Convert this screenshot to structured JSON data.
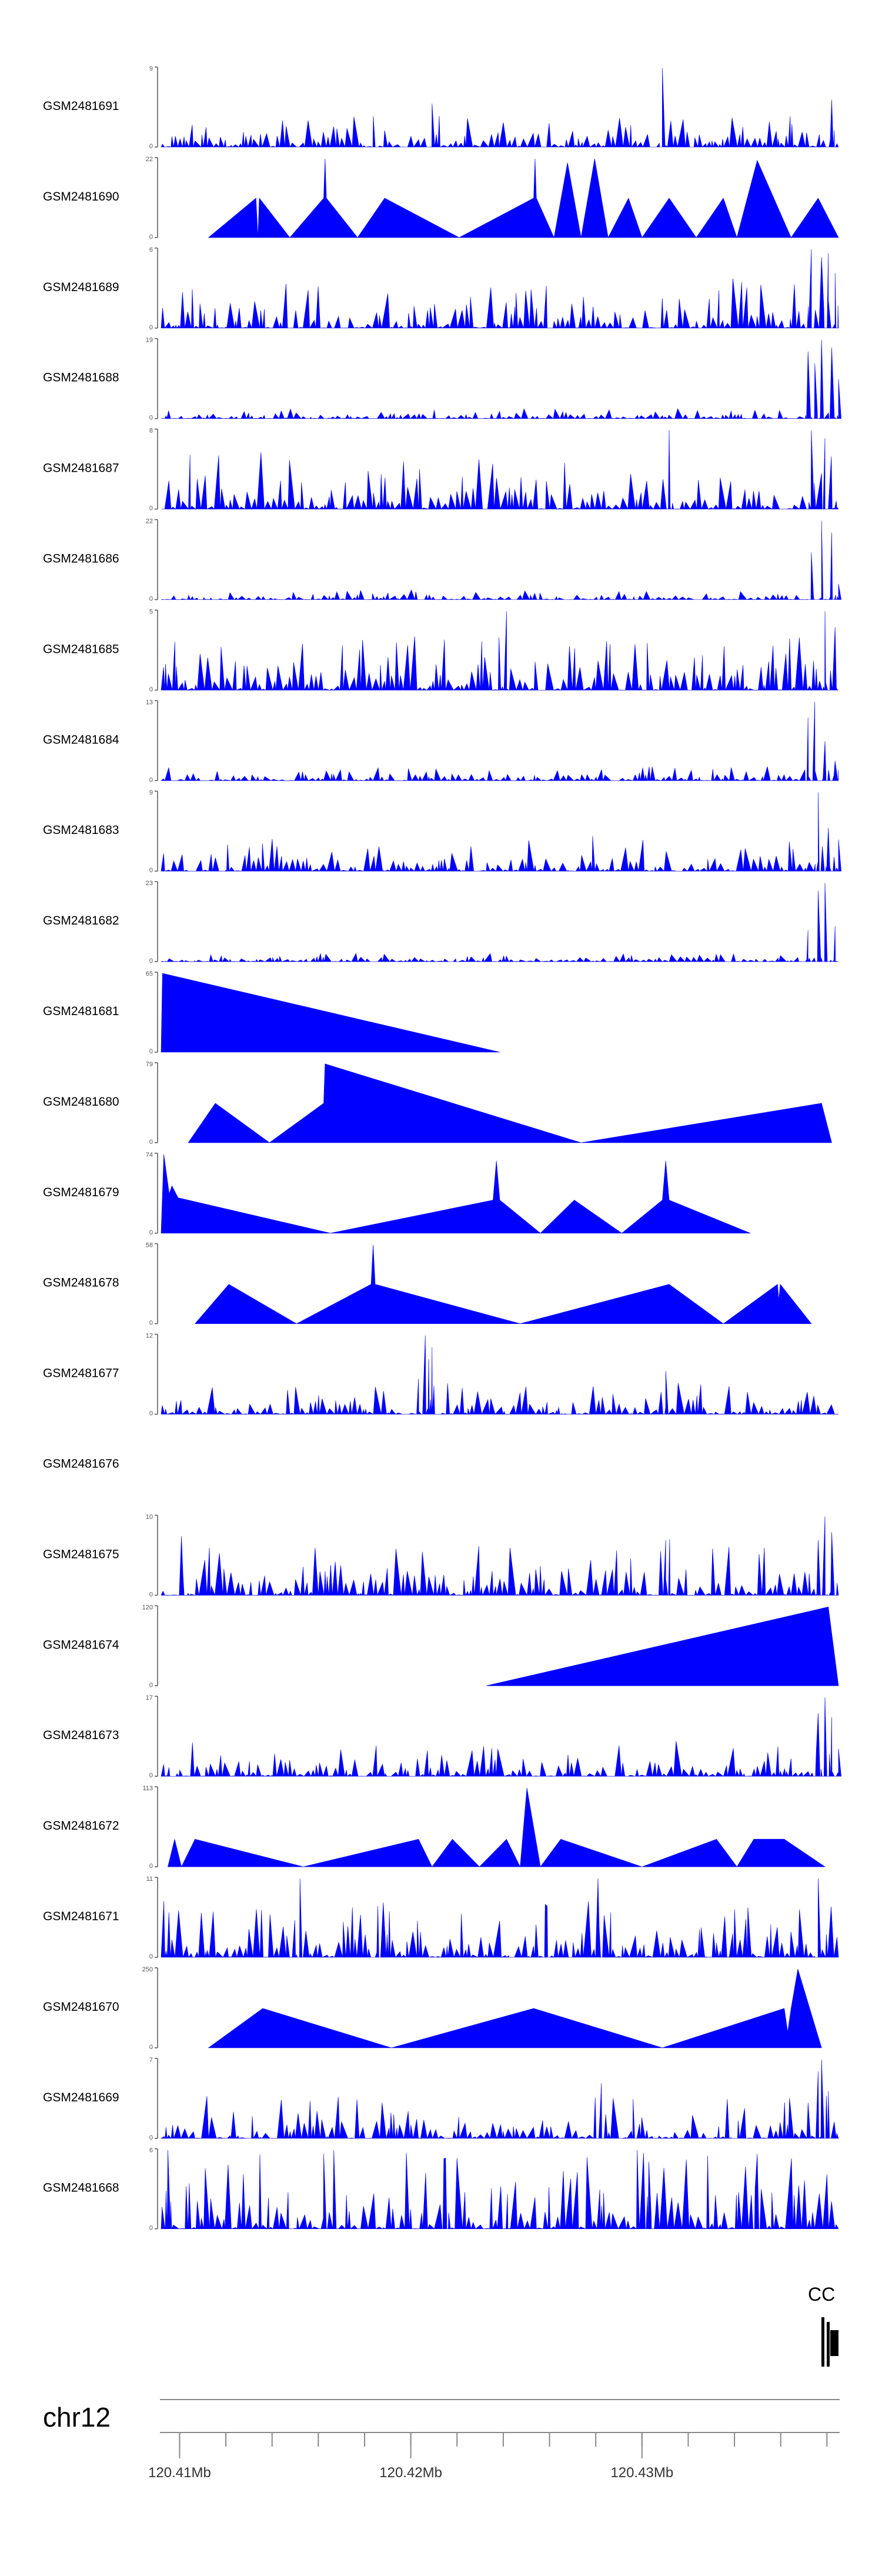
{
  "chart_data": {
    "type": "area",
    "title": "",
    "color": "#0000FF",
    "chromosome": "chr12",
    "gene_label": "CC",
    "x_range_mb": [
      120.4092,
      120.4385
    ],
    "ticks": [
      {
        "pos": 120.41,
        "label": "120.41Mb"
      },
      {
        "pos": 120.42,
        "label": "120.42Mb"
      },
      {
        "pos": 120.43,
        "label": "120.43Mb"
      }
    ],
    "minor_ticks": [
      120.41,
      120.412,
      120.414,
      120.416,
      120.418,
      120.42,
      120.422,
      120.424,
      120.426,
      120.428,
      120.43,
      120.432,
      120.434,
      120.436,
      120.438
    ],
    "tracks": [
      {
        "name": "GSM2481691",
        "ymax": 9,
        "style": "dense",
        "seed": 11,
        "level": 0.22,
        "spikes": [
          [
            0.74,
            1.0
          ],
          [
            0.99,
            0.6
          ],
          [
            0.4,
            0.55
          ]
        ]
      },
      {
        "name": "GSM2481690",
        "ymax": 22,
        "style": "sparse",
        "points": [
          [
            0.07,
            0.0
          ],
          [
            0.14,
            0.5
          ],
          [
            0.143,
            0.0
          ],
          [
            0.145,
            0.5
          ],
          [
            0.19,
            0.0
          ],
          [
            0.24,
            0.5
          ],
          [
            0.242,
            1.0
          ],
          [
            0.244,
            0.5
          ],
          [
            0.29,
            0.0
          ],
          [
            0.33,
            0.5
          ],
          [
            0.44,
            0.0
          ],
          [
            0.55,
            0.5
          ],
          [
            0.552,
            1.0
          ],
          [
            0.554,
            0.5
          ],
          [
            0.58,
            0.0
          ],
          [
            0.6,
            0.95
          ],
          [
            0.62,
            0.0
          ],
          [
            0.64,
            1.0
          ],
          [
            0.66,
            0.0
          ],
          [
            0.69,
            0.5
          ],
          [
            0.71,
            0.0
          ],
          [
            0.75,
            0.5
          ],
          [
            0.79,
            0.0
          ],
          [
            0.83,
            0.5
          ],
          [
            0.85,
            0.0
          ],
          [
            0.88,
            0.98
          ],
          [
            0.93,
            0.0
          ],
          [
            0.97,
            0.5
          ],
          [
            1.0,
            0.0
          ]
        ]
      },
      {
        "name": "GSM2481689",
        "ymax": 6,
        "style": "dense",
        "seed": 23,
        "level": 0.35,
        "spikes": [
          [
            0.96,
            1.0
          ],
          [
            0.975,
            0.9
          ],
          [
            0.985,
            0.95
          ],
          [
            0.995,
            0.7
          ]
        ]
      },
      {
        "name": "GSM2481688",
        "ymax": 19,
        "style": "dense",
        "seed": 31,
        "level": 0.07,
        "spikes": [
          [
            0.955,
            0.85
          ],
          [
            0.965,
            0.7
          ],
          [
            0.975,
            1.0
          ],
          [
            0.99,
            0.9
          ],
          [
            1.0,
            0.5
          ]
        ]
      },
      {
        "name": "GSM2481687",
        "ymax": 8,
        "style": "dense",
        "seed": 47,
        "level": 0.45,
        "spikes": [
          [
            0.75,
            1.0
          ],
          [
            0.96,
            1.0
          ],
          [
            0.98,
            0.9
          ]
        ]
      },
      {
        "name": "GSM2481686",
        "ymax": 22,
        "style": "dense",
        "seed": 53,
        "level": 0.07,
        "spikes": [
          [
            0.96,
            0.6
          ],
          [
            0.975,
            1.0
          ],
          [
            0.99,
            0.85
          ],
          [
            1.0,
            0.2
          ]
        ]
      },
      {
        "name": "GSM2481685",
        "ymax": 5,
        "style": "dense",
        "seed": 61,
        "level": 0.38,
        "spikes": [
          [
            0.51,
            1.0
          ],
          [
            0.98,
            1.0
          ],
          [
            0.995,
            0.8
          ]
        ]
      },
      {
        "name": "GSM2481684",
        "ymax": 13,
        "style": "dense",
        "seed": 71,
        "level": 0.1,
        "spikes": [
          [
            0.955,
            0.8
          ],
          [
            0.965,
            1.0
          ],
          [
            0.98,
            0.5
          ],
          [
            0.995,
            0.25
          ]
        ]
      },
      {
        "name": "GSM2481683",
        "ymax": 9,
        "style": "dense",
        "seed": 83,
        "level": 0.25,
        "spikes": [
          [
            0.97,
            1.0
          ],
          [
            0.985,
            0.55
          ],
          [
            1.0,
            0.4
          ]
        ]
      },
      {
        "name": "GSM2481682",
        "ymax": 23,
        "style": "dense",
        "seed": 97,
        "level": 0.06,
        "spikes": [
          [
            0.955,
            0.4
          ],
          [
            0.97,
            0.9
          ],
          [
            0.98,
            1.0
          ],
          [
            0.995,
            0.45
          ]
        ]
      },
      {
        "name": "GSM2481681",
        "ymax": 65,
        "style": "sparse",
        "points": [
          [
            0.0,
            0.0
          ],
          [
            0.002,
            1.0
          ],
          [
            0.5,
            0.0
          ]
        ]
      },
      {
        "name": "GSM2481680",
        "ymax": 79,
        "style": "sparse",
        "points": [
          [
            0.04,
            0.0
          ],
          [
            0.08,
            0.5
          ],
          [
            0.16,
            0.0
          ],
          [
            0.24,
            0.5
          ],
          [
            0.242,
            1.0
          ],
          [
            0.62,
            0.0
          ],
          [
            0.975,
            0.5
          ],
          [
            0.99,
            0.0
          ]
        ]
      },
      {
        "name": "GSM2481679",
        "ymax": 74,
        "style": "sparse",
        "points": [
          [
            0.0,
            0.0
          ],
          [
            0.004,
            1.0
          ],
          [
            0.012,
            0.5
          ],
          [
            0.016,
            0.6
          ],
          [
            0.025,
            0.45
          ],
          [
            0.25,
            0.0
          ],
          [
            0.49,
            0.42
          ],
          [
            0.495,
            0.92
          ],
          [
            0.5,
            0.42
          ],
          [
            0.56,
            0.0
          ],
          [
            0.61,
            0.42
          ],
          [
            0.68,
            0.0
          ],
          [
            0.74,
            0.42
          ],
          [
            0.745,
            0.92
          ],
          [
            0.75,
            0.42
          ],
          [
            0.87,
            0.0
          ]
        ]
      },
      {
        "name": "GSM2481678",
        "ymax": 58,
        "style": "sparse",
        "points": [
          [
            0.05,
            0.0
          ],
          [
            0.1,
            0.5
          ],
          [
            0.2,
            0.0
          ],
          [
            0.31,
            0.5
          ],
          [
            0.313,
            1.0
          ],
          [
            0.316,
            0.5
          ],
          [
            0.53,
            0.0
          ],
          [
            0.75,
            0.5
          ],
          [
            0.83,
            0.0
          ],
          [
            0.91,
            0.5
          ],
          [
            0.912,
            0.3
          ],
          [
            0.914,
            0.5
          ],
          [
            0.96,
            0.0
          ]
        ]
      },
      {
        "name": "GSM2481677",
        "ymax": 12,
        "style": "dense",
        "seed": 109,
        "level": 0.22,
        "spikes": [
          [
            0.39,
            1.0
          ],
          [
            0.395,
            0.7
          ],
          [
            0.4,
            0.85
          ],
          [
            0.38,
            0.45
          ],
          [
            0.745,
            0.55
          ]
        ]
      },
      {
        "name": "GSM2481676",
        "ymax": null,
        "style": "empty"
      },
      {
        "name": "GSM2481675",
        "ymax": 10,
        "style": "dense",
        "seed": 113,
        "level": 0.4,
        "spikes": [
          [
            0.03,
            0.75
          ],
          [
            0.745,
            0.7
          ],
          [
            0.98,
            1.0
          ],
          [
            0.99,
            0.8
          ],
          [
            0.97,
            0.7
          ]
        ]
      },
      {
        "name": "GSM2481674",
        "ymax": 120,
        "style": "sparse",
        "points": [
          [
            0.48,
            0.0
          ],
          [
            0.985,
            1.0
          ],
          [
            1.0,
            0.0
          ]
        ]
      },
      {
        "name": "GSM2481673",
        "ymax": 17,
        "style": "dense",
        "seed": 127,
        "level": 0.25,
        "spikes": [
          [
            0.97,
            0.8
          ],
          [
            0.98,
            1.0
          ],
          [
            0.99,
            0.75
          ],
          [
            1.0,
            0.35
          ]
        ]
      },
      {
        "name": "GSM2481672",
        "ymax": 113,
        "style": "sparse",
        "points": [
          [
            0.01,
            0.0
          ],
          [
            0.02,
            0.35
          ],
          [
            0.03,
            0.0
          ],
          [
            0.05,
            0.35
          ],
          [
            0.21,
            0.0
          ],
          [
            0.38,
            0.35
          ],
          [
            0.4,
            0.0
          ],
          [
            0.43,
            0.35
          ],
          [
            0.47,
            0.0
          ],
          [
            0.51,
            0.35
          ],
          [
            0.53,
            0.0
          ],
          [
            0.54,
            1.0
          ],
          [
            0.56,
            0.0
          ],
          [
            0.59,
            0.35
          ],
          [
            0.71,
            0.0
          ],
          [
            0.82,
            0.35
          ],
          [
            0.85,
            0.0
          ],
          [
            0.875,
            0.35
          ],
          [
            0.92,
            0.35
          ],
          [
            0.98,
            0.0
          ]
        ]
      },
      {
        "name": "GSM2481671",
        "ymax": 11,
        "style": "dense",
        "seed": 139,
        "level": 0.4,
        "spikes": [
          [
            0.205,
            1.0
          ],
          [
            0.32,
            0.65
          ],
          [
            0.57,
            0.65
          ],
          [
            0.645,
            1.0
          ],
          [
            0.97,
            1.0
          ]
        ]
      },
      {
        "name": "GSM2481670",
        "ymax": 250,
        "style": "sparse",
        "points": [
          [
            0.07,
            0.0
          ],
          [
            0.15,
            0.5
          ],
          [
            0.34,
            0.0
          ],
          [
            0.55,
            0.5
          ],
          [
            0.74,
            0.0
          ],
          [
            0.92,
            0.5
          ],
          [
            0.925,
            0.2
          ],
          [
            0.93,
            0.5
          ],
          [
            0.94,
            1.0
          ],
          [
            0.975,
            0.0
          ]
        ]
      },
      {
        "name": "GSM2481669",
        "ymax": 7,
        "style": "dense",
        "seed": 151,
        "level": 0.3,
        "spikes": [
          [
            0.97,
            0.85
          ],
          [
            0.975,
            1.0
          ],
          [
            0.985,
            0.6
          ],
          [
            0.65,
            0.7
          ]
        ]
      },
      {
        "name": "GSM2481668",
        "ymax": 6,
        "style": "dense",
        "seed": 163,
        "level": 0.6,
        "spikes": [
          [
            0.01,
            1.0
          ],
          [
            0.24,
            0.95
          ],
          [
            0.42,
            0.9
          ],
          [
            0.72,
            0.85
          ],
          [
            0.88,
            0.95
          ]
        ]
      }
    ]
  }
}
